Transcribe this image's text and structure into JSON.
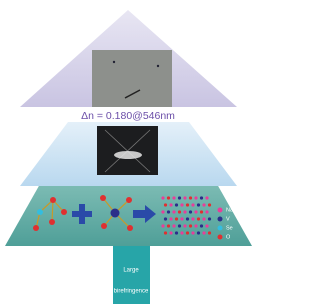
{
  "title": "Δn = 0.180@546nm",
  "legend": [
    "Na",
    "V",
    "Se",
    "O"
  ],
  "trunk": [
    "Large",
    "birefringence"
  ]
}
